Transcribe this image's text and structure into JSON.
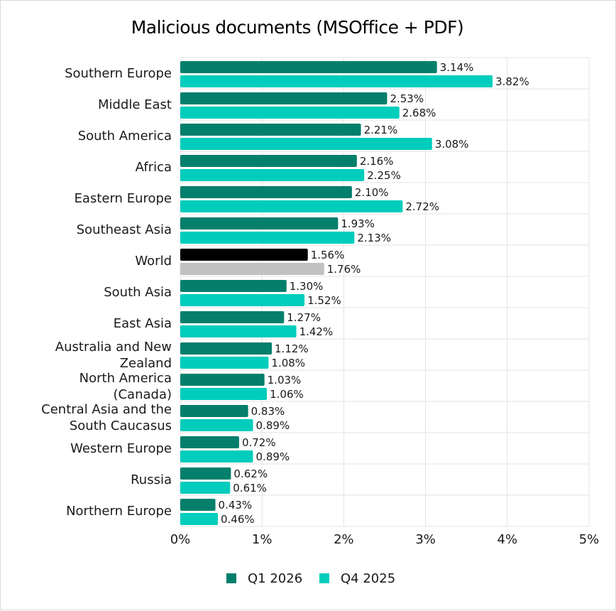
{
  "chart_data": {
    "type": "bar",
    "orientation": "horizontal",
    "title": "Malicious documents (MSOffice + PDF)",
    "categories": [
      "Southern Europe",
      "Middle East",
      "South America",
      "Africa",
      "Eastern Europe",
      "Southeast Asia",
      "World",
      "South Asia",
      "East Asia",
      "Australia and New Zealand",
      "North America (Canada)",
      "Central Asia and the South Caucasus",
      "Western Europe",
      "Russia",
      "Northern Europe"
    ],
    "category_lines": [
      [
        "Southern Europe"
      ],
      [
        "Middle East"
      ],
      [
        "South America"
      ],
      [
        "Africa"
      ],
      [
        "Eastern Europe"
      ],
      [
        "Southeast Asia"
      ],
      [
        "World"
      ],
      [
        "South Asia"
      ],
      [
        "East Asia"
      ],
      [
        "Australia and New",
        "Zealand"
      ],
      [
        "North America",
        "(Canada)"
      ],
      [
        "Central Asia and the",
        "South Caucasus"
      ],
      [
        "Western Europe"
      ],
      [
        "Russia"
      ],
      [
        "Northern Europe"
      ]
    ],
    "series": [
      {
        "name": "Q1 2026",
        "color": "#037f6c",
        "values": [
          3.14,
          2.53,
          2.21,
          2.16,
          2.1,
          1.93,
          1.56,
          1.3,
          1.27,
          1.12,
          1.03,
          0.83,
          0.72,
          0.62,
          0.43
        ],
        "labels": [
          "3.14%",
          "2.53%",
          "2.21%",
          "2.16%",
          "2.10%",
          "1.93%",
          "1.56%",
          "1.30%",
          "1.27%",
          "1.12%",
          "1.03%",
          "0.83%",
          "0.72%",
          "0.62%",
          "0.43%"
        ]
      },
      {
        "name": "Q4 2025",
        "color": "#00cdbb",
        "values": [
          3.82,
          2.68,
          3.08,
          2.25,
          2.72,
          2.13,
          1.76,
          1.52,
          1.42,
          1.08,
          1.06,
          0.89,
          0.89,
          0.61,
          0.46
        ],
        "labels": [
          "3.82%",
          "2.68%",
          "3.08%",
          "2.25%",
          "2.72%",
          "2.13%",
          "1.76%",
          "1.52%",
          "1.42%",
          "1.08%",
          "1.06%",
          "0.89%",
          "0.89%",
          "0.61%",
          "0.46%"
        ]
      }
    ],
    "highlight": {
      "category": "World",
      "colors": [
        "#000000",
        "#c1c1c1"
      ]
    },
    "xlim": [
      0,
      5
    ],
    "xticks": [
      "0%",
      "1%",
      "2%",
      "3%",
      "4%",
      "5%"
    ],
    "grid": true,
    "legend_position": "bottom"
  }
}
